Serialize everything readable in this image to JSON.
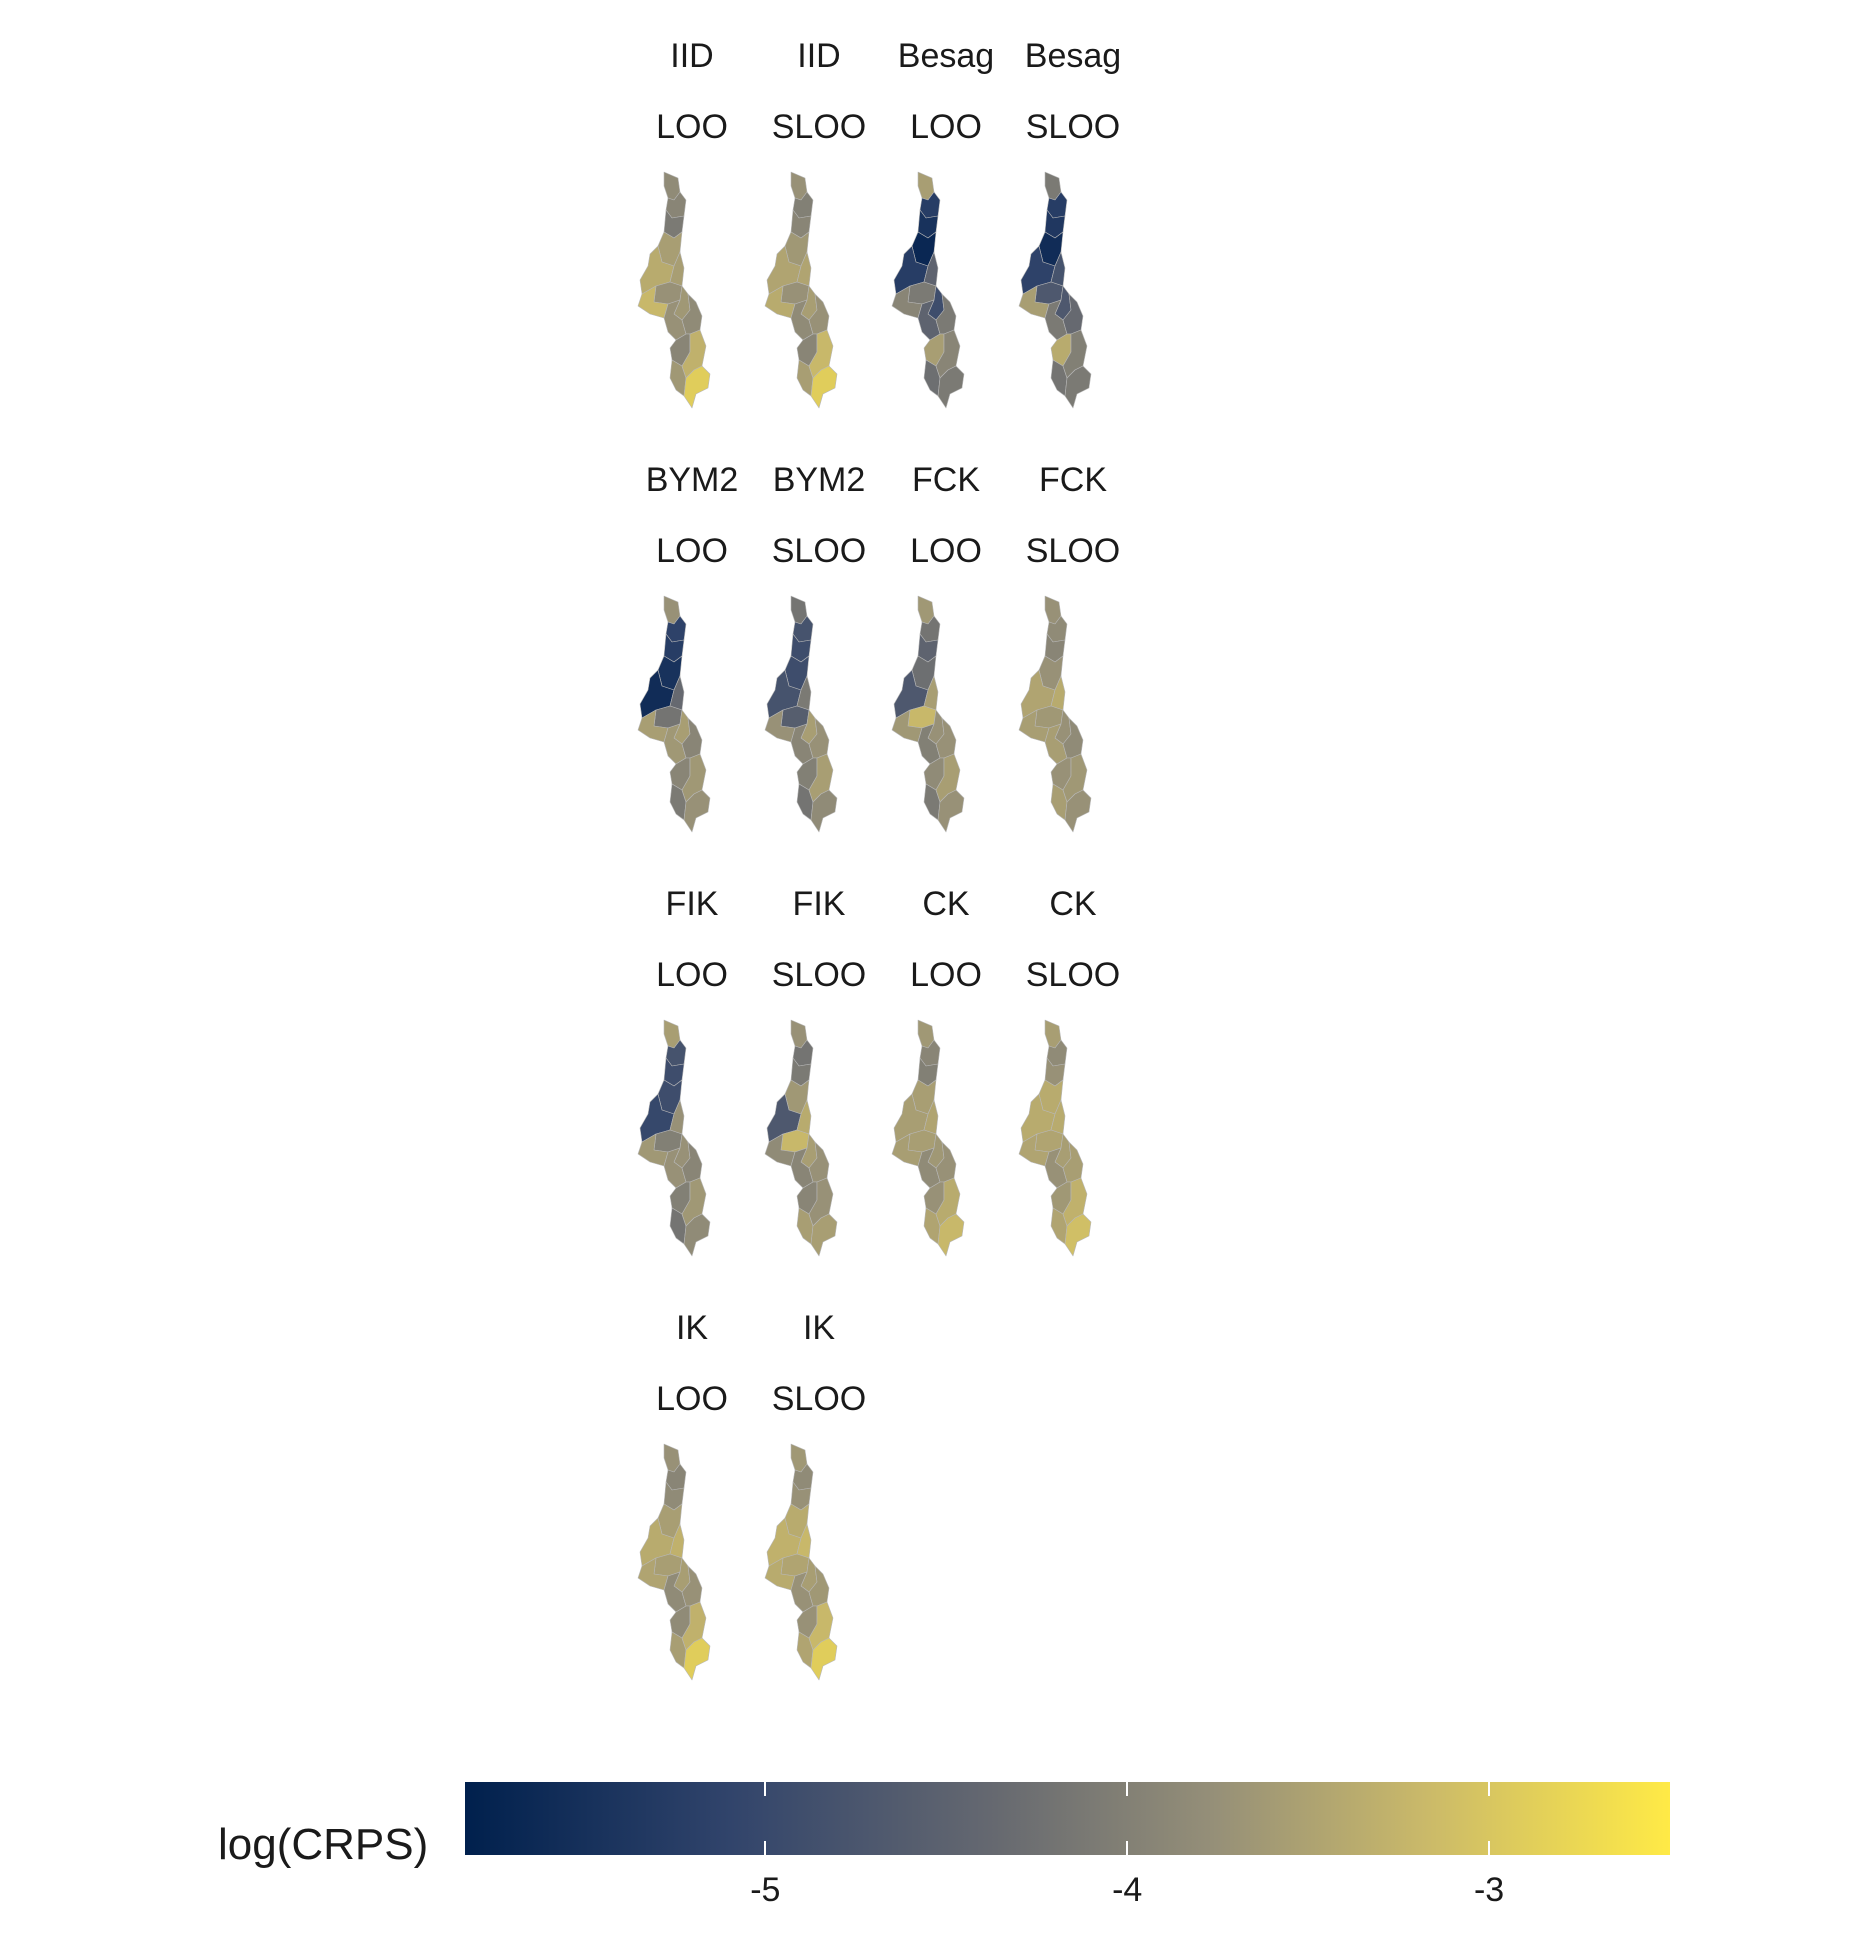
{
  "panels": [
    {
      "model": "IID",
      "scheme": "LOO",
      "region_values": [
        -3.9,
        -4.0,
        -4.2,
        -3.6,
        -3.4,
        -3.6,
        -3.8,
        -3.2,
        -3.7,
        -3.8,
        -3.9,
        -4.0,
        -3.7,
        -3.3,
        -2.9
      ]
    },
    {
      "model": "IID",
      "scheme": "SLOO",
      "region_values": [
        -3.8,
        -4.1,
        -4.0,
        -3.7,
        -3.5,
        -3.5,
        -3.8,
        -3.4,
        -3.6,
        -3.9,
        -3.8,
        -4.0,
        -3.6,
        -3.2,
        -2.9
      ]
    },
    {
      "model": "Besag",
      "scheme": "LOO",
      "region_values": [
        -3.6,
        -5.3,
        -5.5,
        -5.7,
        -5.3,
        -4.6,
        -4.2,
        -4.0,
        -5.0,
        -4.6,
        -4.2,
        -3.6,
        -4.4,
        -4.0,
        -4.2
      ]
    },
    {
      "model": "Besag",
      "scheme": "SLOO",
      "region_values": [
        -4.2,
        -5.3,
        -5.4,
        -5.6,
        -5.2,
        -4.9,
        -4.8,
        -3.6,
        -4.8,
        -4.2,
        -4.5,
        -3.4,
        -4.3,
        -4.1,
        -4.2
      ]
    },
    {
      "model": "BYM2",
      "scheme": "LOO",
      "region_values": [
        -3.8,
        -5.2,
        -5.3,
        -5.5,
        -5.6,
        -4.5,
        -4.3,
        -3.6,
        -3.6,
        -3.7,
        -4.0,
        -4.0,
        -4.2,
        -3.7,
        -3.8
      ]
    },
    {
      "model": "BYM2",
      "scheme": "SLOO",
      "region_values": [
        -4.3,
        -4.9,
        -5.0,
        -5.0,
        -4.9,
        -4.2,
        -4.7,
        -3.8,
        -3.6,
        -4.0,
        -3.8,
        -4.1,
        -4.3,
        -3.6,
        -3.9
      ]
    },
    {
      "model": "FCK",
      "scheme": "LOO",
      "region_values": [
        -3.7,
        -4.3,
        -4.6,
        -4.4,
        -4.8,
        -3.6,
        -3.2,
        -3.7,
        -3.8,
        -4.1,
        -3.8,
        -3.9,
        -4.2,
        -3.6,
        -3.8
      ]
    },
    {
      "model": "FCK",
      "scheme": "SLOO",
      "region_values": [
        -3.8,
        -3.9,
        -4.0,
        -3.8,
        -3.5,
        -3.4,
        -3.7,
        -3.6,
        -3.8,
        -3.6,
        -3.9,
        -3.8,
        -3.6,
        -3.7,
        -3.8
      ]
    },
    {
      "model": "FIK",
      "scheme": "LOO",
      "region_values": [
        -3.6,
        -4.9,
        -5.0,
        -5.0,
        -5.1,
        -3.8,
        -4.1,
        -3.7,
        -3.8,
        -3.8,
        -4.0,
        -4.1,
        -4.3,
        -3.7,
        -3.9
      ]
    },
    {
      "model": "FIK",
      "scheme": "SLOO",
      "region_values": [
        -3.8,
        -4.3,
        -4.2,
        -3.7,
        -4.8,
        -3.4,
        -3.2,
        -3.9,
        -3.6,
        -4.0,
        -3.8,
        -4.0,
        -3.6,
        -3.8,
        -3.6
      ]
    },
    {
      "model": "CK",
      "scheme": "LOO",
      "region_values": [
        -3.7,
        -4.0,
        -4.1,
        -3.6,
        -3.6,
        -3.5,
        -3.6,
        -3.6,
        -3.7,
        -3.9,
        -3.8,
        -3.8,
        -3.5,
        -3.4,
        -3.2
      ]
    },
    {
      "model": "CK",
      "scheme": "SLOO",
      "region_values": [
        -3.6,
        -3.9,
        -3.8,
        -3.4,
        -3.4,
        -3.4,
        -3.5,
        -3.5,
        -3.6,
        -3.8,
        -3.6,
        -3.7,
        -3.5,
        -3.3,
        -3.1
      ]
    },
    {
      "model": "IK",
      "scheme": "LOO",
      "region_values": [
        -3.8,
        -4.0,
        -3.9,
        -3.6,
        -3.4,
        -3.3,
        -3.6,
        -3.5,
        -3.6,
        -3.9,
        -3.8,
        -3.9,
        -3.6,
        -3.3,
        -2.9
      ]
    },
    {
      "model": "IK",
      "scheme": "SLOO",
      "region_values": [
        -3.7,
        -3.9,
        -3.8,
        -3.4,
        -3.3,
        -3.2,
        -3.5,
        -3.4,
        -3.6,
        -3.8,
        -3.7,
        -3.8,
        -3.5,
        -3.2,
        -2.9
      ]
    }
  ],
  "legend": {
    "title": "log(CRPS)",
    "scale_min": -5.83,
    "scale_max": -2.5,
    "ticks": [
      {
        "value": -5,
        "label": "-5"
      },
      {
        "value": -4,
        "label": "-4"
      },
      {
        "value": -3,
        "label": "-3"
      }
    ],
    "palette": [
      "#00204d",
      "#31446b",
      "#666970",
      "#958f78",
      "#cbba69",
      "#ffea46"
    ]
  },
  "colors": {
    "region_border": "#b8b8b8"
  }
}
